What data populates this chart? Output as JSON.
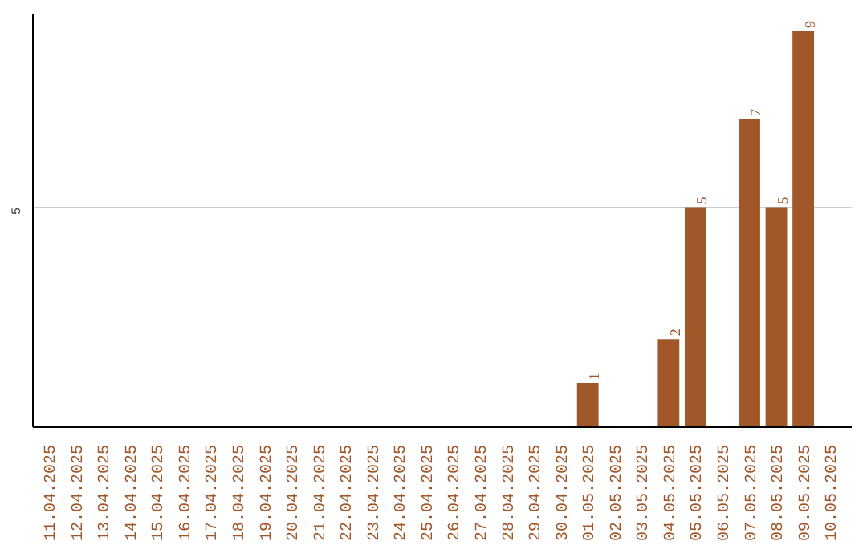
{
  "chart_data": {
    "type": "bar",
    "categories": [
      "11.04.2025",
      "12.04.2025",
      "13.04.2025",
      "14.04.2025",
      "15.04.2025",
      "16.04.2025",
      "17.04.2025",
      "18.04.2025",
      "19.04.2025",
      "20.04.2025",
      "21.04.2025",
      "22.04.2025",
      "23.04.2025",
      "24.04.2025",
      "25.04.2025",
      "26.04.2025",
      "27.04.2025",
      "28.04.2025",
      "29.04.2025",
      "30.04.2025",
      "01.05.2025",
      "02.05.2025",
      "03.05.2025",
      "04.05.2025",
      "05.05.2025",
      "06.05.2025",
      "07.05.2025",
      "08.05.2025",
      "09.05.2025",
      "10.05.2025"
    ],
    "values": [
      null,
      null,
      null,
      null,
      null,
      null,
      null,
      null,
      null,
      null,
      null,
      null,
      null,
      null,
      null,
      null,
      null,
      null,
      null,
      null,
      1,
      null,
      null,
      2,
      5,
      null,
      7,
      5,
      9,
      null
    ],
    "color": "#a0572a",
    "ylim": [
      0,
      9.4
    ],
    "yticks": [
      5
    ],
    "grid": "y",
    "data_labels": true
  }
}
